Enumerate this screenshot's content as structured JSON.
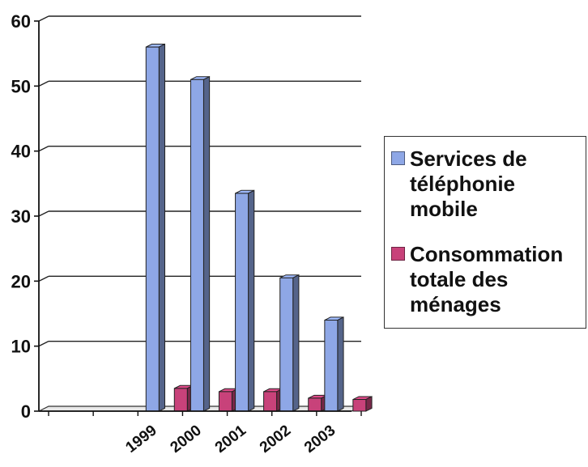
{
  "chart_data": {
    "type": "bar",
    "three_d": true,
    "categories": [
      "",
      "",
      "1999",
      "2000",
      "2001",
      "2002",
      "2003"
    ],
    "series": [
      {
        "name": "Services de téléphonie mobile",
        "color": "#8ea7e6",
        "values": [
          0,
          0,
          56,
          51,
          33.5,
          20.5,
          14
        ]
      },
      {
        "name": "Consommation totale des ménages",
        "color": "#c8427a",
        "values": [
          0,
          0,
          3.5,
          3,
          3,
          2,
          1.8
        ]
      }
    ],
    "title": "",
    "xlabel": "",
    "ylabel": "",
    "ylim": [
      0,
      60
    ],
    "yticks": [
      0,
      10,
      20,
      30,
      40,
      50,
      60
    ],
    "grid": true,
    "legend_position": "right"
  }
}
